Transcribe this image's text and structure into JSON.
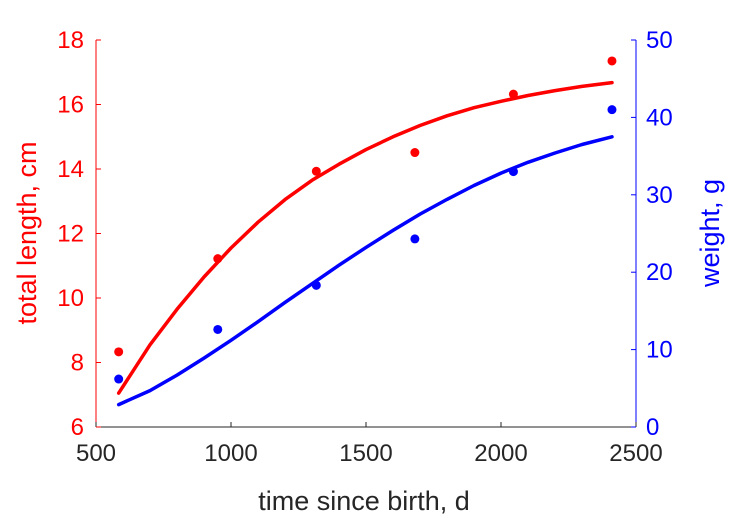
{
  "chart_data": {
    "type": "scatter",
    "title": "",
    "xlabel": "time since birth, d",
    "ylabel_left": "total length, cm",
    "ylabel_right": "weight, g",
    "xlim": [
      500,
      2500
    ],
    "ylim_left": [
      6,
      18
    ],
    "ylim_right": [
      0,
      50
    ],
    "x_ticks": [
      "500",
      "1000",
      "1500",
      "2000",
      "2500"
    ],
    "y_left_ticks": [
      "6",
      "8",
      "10",
      "12",
      "14",
      "16",
      "18"
    ],
    "y_right_ticks": [
      "0",
      "10",
      "20",
      "30",
      "40",
      "50"
    ],
    "grid": false,
    "series": [
      {
        "axis": "left",
        "color": "#ff0000",
        "points": {
          "x": [
            584,
            951,
            1316,
            1681,
            2046,
            2411
          ],
          "y": [
            8.33,
            11.22,
            13.93,
            14.51,
            16.32,
            17.35
          ]
        },
        "fit": {
          "x": [
            584,
            700,
            800,
            900,
            1000,
            1100,
            1200,
            1300,
            1400,
            1500,
            1600,
            1700,
            1800,
            1900,
            2000,
            2100,
            2200,
            2300,
            2411
          ],
          "y": [
            7.05,
            8.55,
            9.65,
            10.65,
            11.55,
            12.35,
            13.05,
            13.65,
            14.15,
            14.6,
            15.0,
            15.35,
            15.65,
            15.9,
            16.1,
            16.28,
            16.43,
            16.56,
            16.68
          ]
        }
      },
      {
        "axis": "right",
        "color": "#0000ff",
        "points": {
          "x": [
            584,
            951,
            1316,
            1681,
            2046,
            2411
          ],
          "y": [
            6.2,
            12.6,
            18.3,
            24.3,
            33.0,
            41.0
          ]
        },
        "fit": {
          "x": [
            584,
            700,
            800,
            900,
            1000,
            1100,
            1200,
            1300,
            1400,
            1500,
            1600,
            1700,
            1800,
            1900,
            2000,
            2100,
            2200,
            2300,
            2411
          ],
          "y": [
            2.9,
            4.7,
            6.7,
            8.9,
            11.2,
            13.6,
            16.1,
            18.5,
            20.9,
            23.2,
            25.4,
            27.5,
            29.4,
            31.2,
            32.8,
            34.2,
            35.4,
            36.5,
            37.5
          ]
        }
      }
    ]
  }
}
